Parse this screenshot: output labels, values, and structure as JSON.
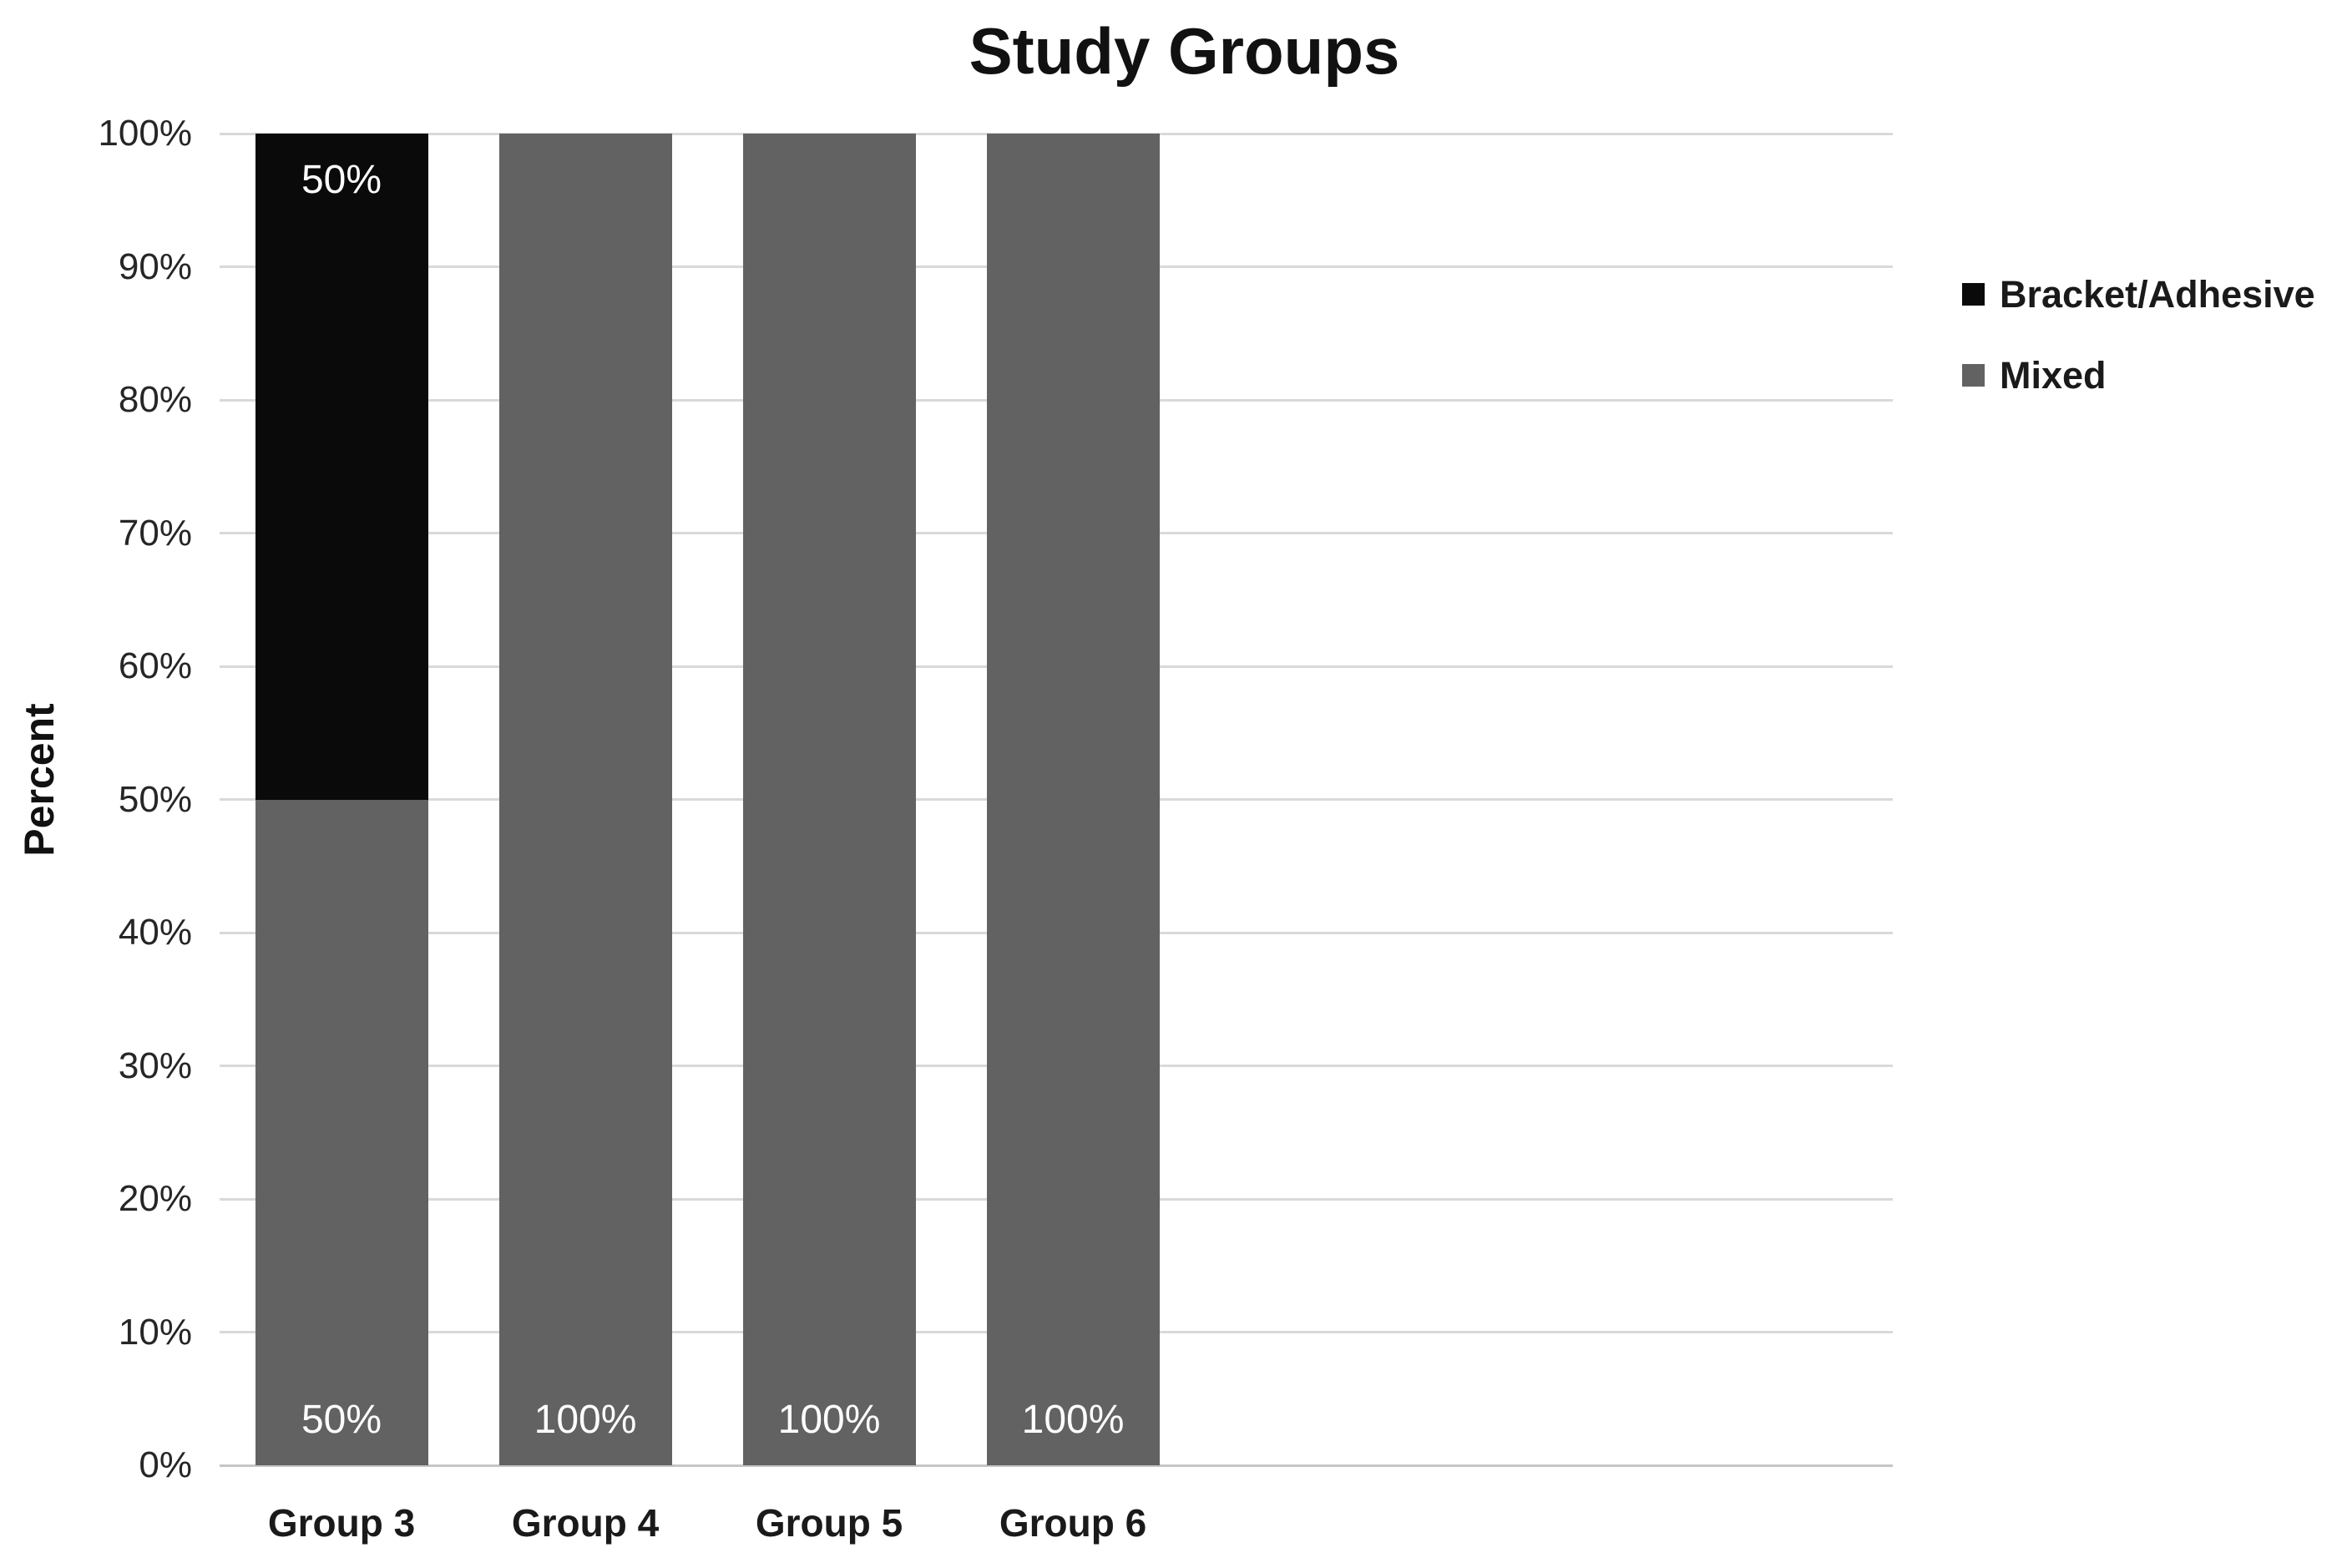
{
  "chart_data": {
    "type": "bar",
    "stacked": true,
    "title": "Study Groups",
    "ylabel": "Percent",
    "xlabel": "",
    "categories": [
      "Group 3",
      "Group 4",
      "Group 5",
      "Group 6"
    ],
    "series": [
      {
        "name": "Mixed",
        "color": "#626262",
        "values": [
          50,
          100,
          100,
          100
        ],
        "label_position": "inside-base"
      },
      {
        "name": "Bracket/Adhesive",
        "color": "#0a0a0a",
        "values": [
          50,
          0,
          0,
          0
        ],
        "label_position": "inside-end"
      }
    ],
    "legend": [
      {
        "label": "Bracket/Adhesive",
        "color": "#0a0a0a"
      },
      {
        "label": "Mixed",
        "color": "#626262"
      }
    ],
    "legend_position": "right",
    "ylim": [
      0,
      100
    ],
    "ytick_step": 10,
    "ytick_suffix": "%",
    "grid": true,
    "data_labels": [
      {
        "category": "Group 3",
        "series": "Bracket/Adhesive",
        "text": "50%"
      },
      {
        "category": "Group 3",
        "series": "Mixed",
        "text": "50%"
      },
      {
        "category": "Group 4",
        "series": "Mixed",
        "text": "100%"
      },
      {
        "category": "Group 5",
        "series": "Mixed",
        "text": "100%"
      },
      {
        "category": "Group 6",
        "series": "Mixed",
        "text": "100%"
      }
    ],
    "colors": {
      "grid": "#d9d9d9",
      "axis": "#c6c6c6",
      "tick_text": "#262626",
      "data_label": "#ffffff",
      "background": "#ffffff"
    }
  }
}
